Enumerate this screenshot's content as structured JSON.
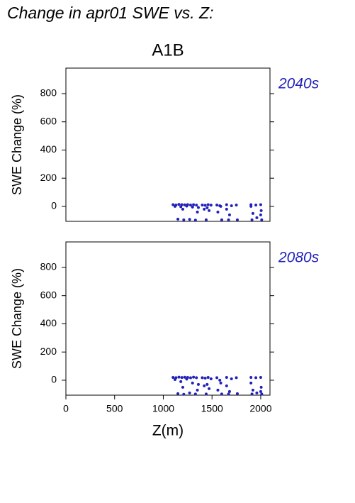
{
  "title": "Change in apr01 SWE vs. Z:",
  "subtitle": "A1B",
  "chart_data": [
    {
      "type": "scatter",
      "annotation": "2040s",
      "ylabel": "SWE Change (%)",
      "color": "#2222bb",
      "xlim": [
        0,
        2095
      ],
      "ylim": [
        -106,
        981
      ],
      "yticks": [
        0,
        200,
        400,
        600,
        800
      ],
      "x": [
        1100,
        1130,
        1160,
        1190,
        1220,
        1250,
        1280,
        1310,
        1340,
        1120,
        1180,
        1240,
        1300,
        1360,
        1150,
        1210,
        1270,
        1330,
        1400,
        1430,
        1460,
        1490,
        1420,
        1470,
        1440,
        1550,
        1580,
        1560,
        1600,
        1590,
        1650,
        1680,
        1670,
        1700,
        1750,
        1760,
        1900,
        1920,
        1910,
        1950,
        1960,
        2000,
        2010,
        2005,
        1200,
        1350,
        1450,
        1650,
        1900,
        2000
      ],
      "values": [
        12,
        10,
        14,
        12,
        11,
        13,
        10,
        12,
        9,
        0,
        -2,
        2,
        -5,
        -8,
        -90,
        -95,
        -92,
        -97,
        10,
        8,
        12,
        9,
        -20,
        -30,
        -95,
        10,
        5,
        -40,
        -95,
        0,
        12,
        -60,
        -95,
        5,
        10,
        -95,
        12,
        -50,
        -95,
        10,
        -80,
        12,
        -95,
        -30,
        -20,
        -40,
        -10,
        -20,
        0,
        -60
      ]
    },
    {
      "type": "scatter",
      "annotation": "2080s",
      "ylabel": "SWE Change (%)",
      "xlabel": "Z(m)",
      "color": "#2222bb",
      "xlim": [
        0,
        2095
      ],
      "ylim": [
        -106,
        981
      ],
      "yticks": [
        0,
        200,
        400,
        600,
        800
      ],
      "xticks": [
        0,
        500,
        1000,
        1500,
        2000
      ],
      "x": [
        1100,
        1130,
        1160,
        1190,
        1220,
        1250,
        1280,
        1310,
        1340,
        1120,
        1180,
        1240,
        1300,
        1360,
        1150,
        1210,
        1270,
        1330,
        1400,
        1430,
        1460,
        1490,
        1420,
        1470,
        1440,
        1550,
        1580,
        1560,
        1600,
        1590,
        1650,
        1680,
        1670,
        1700,
        1750,
        1760,
        1900,
        1920,
        1910,
        1950,
        1960,
        2000,
        2010,
        2005,
        1200,
        1350,
        1450,
        1650,
        1900,
        2000
      ],
      "values": [
        20,
        18,
        22,
        19,
        21,
        20,
        17,
        22,
        18,
        5,
        -10,
        8,
        -20,
        -30,
        -95,
        -100,
        -90,
        -98,
        18,
        15,
        20,
        10,
        -40,
        -60,
        -98,
        18,
        0,
        -70,
        -98,
        -20,
        20,
        -80,
        -98,
        10,
        18,
        -95,
        20,
        -70,
        -98,
        18,
        -90,
        20,
        -98,
        -50,
        -50,
        -70,
        -30,
        -40,
        -20,
        -80
      ]
    }
  ]
}
